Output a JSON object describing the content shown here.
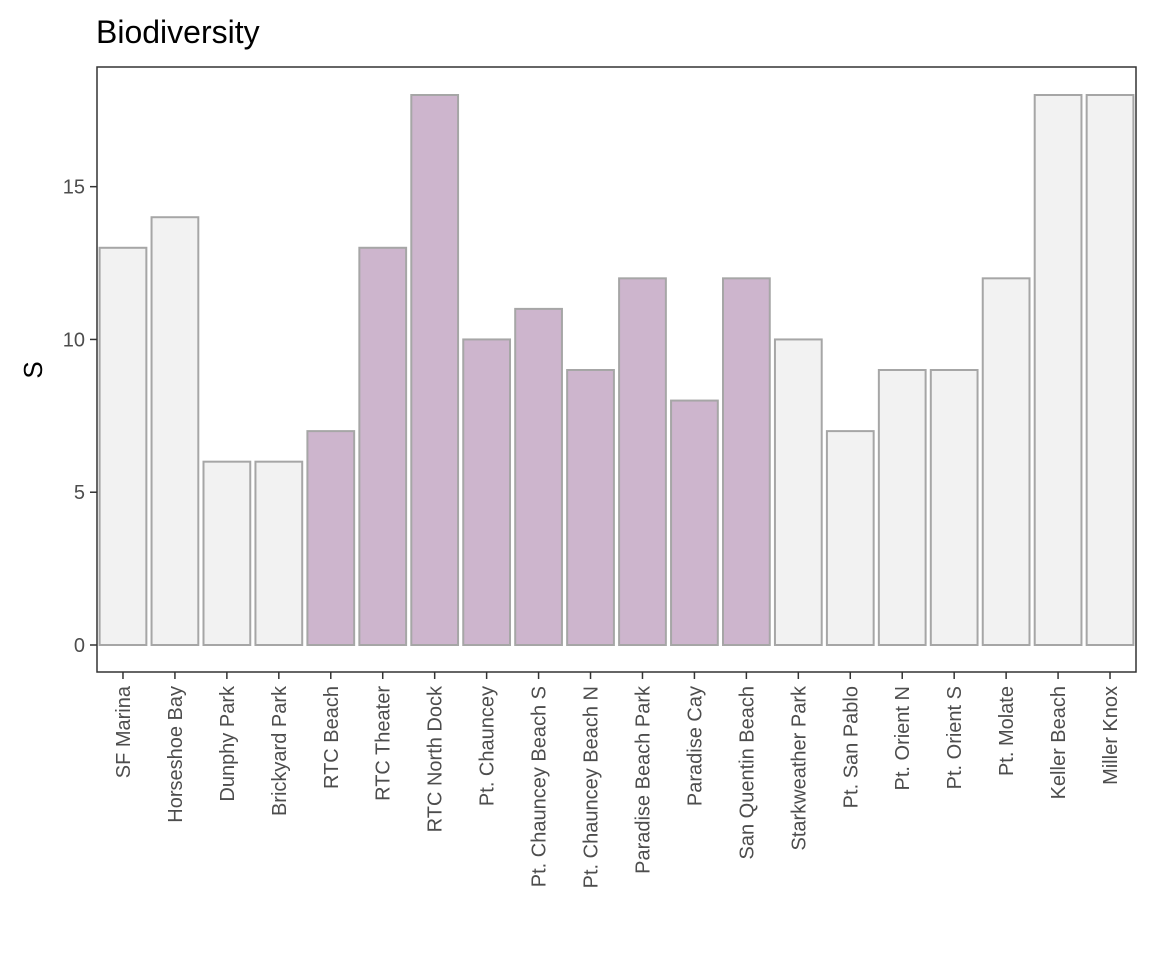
{
  "chart_data": {
    "type": "bar",
    "title": "Biodiversity",
    "xlabel": "",
    "ylabel": "S",
    "ylim": [
      0,
      18
    ],
    "yticks": [
      0,
      5,
      10,
      15
    ],
    "grid": false,
    "categories": [
      "SF Marina",
      "Horseshoe Bay",
      "Dunphy Park",
      "Brickyard Park",
      "RTC Beach",
      "RTC Theater",
      "RTC North Dock",
      "Pt. Chauncey",
      "Pt. Chauncey Beach S",
      "Pt. Chauncey Beach N",
      "Paradise Beach Park",
      "Paradise Cay",
      "San Quentin Beach",
      "Starkweather Park",
      "Pt. San Pablo",
      "Pt. Orient N",
      "Pt. Orient S",
      "Pt. Molate",
      "Keller Beach",
      "Miller Knox"
    ],
    "values": [
      13,
      14,
      6,
      6,
      7,
      13,
      18,
      10,
      11,
      9,
      12,
      8,
      12,
      10,
      7,
      9,
      9,
      12,
      18,
      18
    ],
    "highlighted": [
      false,
      false,
      false,
      false,
      true,
      true,
      true,
      true,
      true,
      true,
      true,
      true,
      true,
      false,
      false,
      false,
      false,
      false,
      false,
      false
    ],
    "colors": {
      "highlight_fill": "#cdb5cd",
      "default_fill": "#f2f2f2",
      "bar_stroke": "#a6a6a6",
      "panel_border": "#333333"
    }
  }
}
